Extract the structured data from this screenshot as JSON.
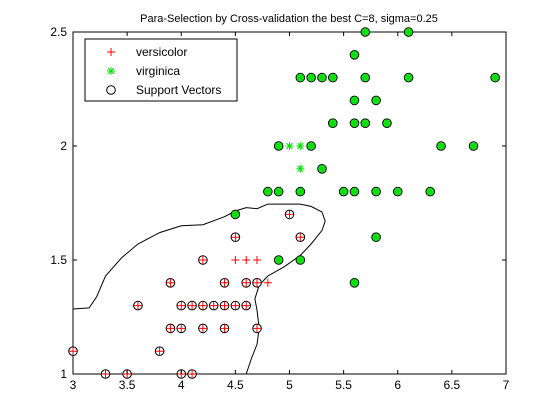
{
  "chart_data": {
    "type": "scatter",
    "title": "Para-Selection by Cross-validation the best C=8, sigma=0.25",
    "xlabel": "",
    "ylabel": "",
    "xlim": [
      3,
      7
    ],
    "ylim": [
      1,
      2.5
    ],
    "xticks": [
      "3",
      "3.5",
      "4",
      "4.5",
      "5",
      "5.5",
      "6",
      "6.5",
      "7"
    ],
    "yticks": [
      "1",
      "1.5",
      "2",
      "2.5"
    ],
    "legend_position": "top-left",
    "colors": {
      "versicolor": "#ff0000",
      "virginica": "#00e000",
      "support_fill": "#33dd33",
      "support_edge": "#000000",
      "boundary": "#000000"
    },
    "legend": [
      {
        "label": "versicolor",
        "marker": "plus"
      },
      {
        "label": "virginica",
        "marker": "asterisk"
      },
      {
        "label": "Support Vectors",
        "marker": "circle"
      }
    ],
    "series": [
      {
        "name": "versicolor",
        "marker": "plus",
        "points": [
          [
            3.0,
            1.1
          ],
          [
            3.3,
            1.0
          ],
          [
            3.5,
            1.0
          ],
          [
            3.6,
            1.3
          ],
          [
            3.8,
            1.1
          ],
          [
            3.9,
            1.2
          ],
          [
            3.9,
            1.4
          ],
          [
            4.0,
            1.0
          ],
          [
            4.0,
            1.2
          ],
          [
            4.0,
            1.3
          ],
          [
            4.1,
            1.0
          ],
          [
            4.1,
            1.3
          ],
          [
            4.2,
            1.2
          ],
          [
            4.2,
            1.3
          ],
          [
            4.2,
            1.5
          ],
          [
            4.3,
            1.3
          ],
          [
            4.4,
            1.2
          ],
          [
            4.4,
            1.3
          ],
          [
            4.4,
            1.4
          ],
          [
            4.5,
            1.3
          ],
          [
            4.5,
            1.5
          ],
          [
            4.5,
            1.6
          ],
          [
            4.6,
            1.3
          ],
          [
            4.6,
            1.4
          ],
          [
            4.6,
            1.5
          ],
          [
            4.7,
            1.2
          ],
          [
            4.7,
            1.4
          ],
          [
            4.7,
            1.5
          ],
          [
            4.8,
            1.4
          ],
          [
            4.9,
            1.5
          ],
          [
            5.0,
            1.7
          ],
          [
            5.1,
            1.6
          ]
        ]
      },
      {
        "name": "virginica",
        "marker": "asterisk",
        "points": [
          [
            4.5,
            1.7
          ],
          [
            4.8,
            1.8
          ],
          [
            4.9,
            1.8
          ],
          [
            4.9,
            2.0
          ],
          [
            5.0,
            2.0
          ],
          [
            5.1,
            2.0
          ],
          [
            5.1,
            1.9
          ],
          [
            5.1,
            1.8
          ],
          [
            5.1,
            2.3
          ],
          [
            5.2,
            2.0
          ],
          [
            5.2,
            2.3
          ],
          [
            5.3,
            1.9
          ],
          [
            5.3,
            2.3
          ],
          [
            5.4,
            2.1
          ],
          [
            5.4,
            2.3
          ],
          [
            5.5,
            1.8
          ],
          [
            5.6,
            1.8
          ],
          [
            5.6,
            2.1
          ],
          [
            5.6,
            2.2
          ],
          [
            5.6,
            2.4
          ],
          [
            5.7,
            2.1
          ],
          [
            5.7,
            2.3
          ],
          [
            5.7,
            2.5
          ],
          [
            5.8,
            1.8
          ],
          [
            5.8,
            2.2
          ],
          [
            5.8,
            1.6
          ],
          [
            5.9,
            2.1
          ],
          [
            6.0,
            1.8
          ],
          [
            6.1,
            2.3
          ],
          [
            6.1,
            2.5
          ],
          [
            6.3,
            1.8
          ],
          [
            6.4,
            2.0
          ],
          [
            6.7,
            2.0
          ],
          [
            6.9,
            2.3
          ],
          [
            5.6,
            1.4
          ],
          [
            4.9,
            1.5
          ],
          [
            5.1,
            1.5
          ]
        ]
      },
      {
        "name": "Support Vectors",
        "marker": "circle",
        "points": [
          [
            3.0,
            1.1
          ],
          [
            3.3,
            1.0
          ],
          [
            3.5,
            1.0
          ],
          [
            3.6,
            1.3
          ],
          [
            3.8,
            1.1
          ],
          [
            3.9,
            1.2
          ],
          [
            3.9,
            1.4
          ],
          [
            4.0,
            1.0
          ],
          [
            4.0,
            1.2
          ],
          [
            4.0,
            1.3
          ],
          [
            4.1,
            1.0
          ],
          [
            4.1,
            1.3
          ],
          [
            4.2,
            1.2
          ],
          [
            4.2,
            1.3
          ],
          [
            4.2,
            1.5
          ],
          [
            4.3,
            1.3
          ],
          [
            4.4,
            1.2
          ],
          [
            4.4,
            1.3
          ],
          [
            4.4,
            1.4
          ],
          [
            4.5,
            1.3
          ],
          [
            4.5,
            1.6
          ],
          [
            4.6,
            1.3
          ],
          [
            4.6,
            1.4
          ],
          [
            4.7,
            1.2
          ],
          [
            4.7,
            1.4
          ],
          [
            4.9,
            1.5
          ],
          [
            5.0,
            1.7
          ],
          [
            5.1,
            1.6
          ],
          [
            4.5,
            1.7
          ],
          [
            4.8,
            1.8
          ],
          [
            4.9,
            1.8
          ],
          [
            4.9,
            2.0
          ],
          [
            5.1,
            2.3
          ],
          [
            5.1,
            1.8
          ],
          [
            5.1,
            1.5
          ],
          [
            5.2,
            2.0
          ],
          [
            5.2,
            2.3
          ],
          [
            5.3,
            1.9
          ],
          [
            5.3,
            2.3
          ],
          [
            5.4,
            2.1
          ],
          [
            5.4,
            2.3
          ],
          [
            5.5,
            1.8
          ],
          [
            5.6,
            1.8
          ],
          [
            5.6,
            2.1
          ],
          [
            5.6,
            2.2
          ],
          [
            5.6,
            2.4
          ],
          [
            5.6,
            1.4
          ],
          [
            5.7,
            2.1
          ],
          [
            5.7,
            2.3
          ],
          [
            5.7,
            2.5
          ],
          [
            5.8,
            1.8
          ],
          [
            5.8,
            2.2
          ],
          [
            5.8,
            1.6
          ],
          [
            5.9,
            2.1
          ],
          [
            6.0,
            1.8
          ],
          [
            6.1,
            2.3
          ],
          [
            6.1,
            2.5
          ],
          [
            6.3,
            1.8
          ],
          [
            6.4,
            2.0
          ],
          [
            6.7,
            2.0
          ],
          [
            6.9,
            2.3
          ]
        ]
      }
    ],
    "decision_boundary": [
      [
        3.0,
        1.285
      ],
      [
        3.15,
        1.29
      ],
      [
        3.22,
        1.34
      ],
      [
        3.3,
        1.43
      ],
      [
        3.45,
        1.51
      ],
      [
        3.6,
        1.57
      ],
      [
        3.8,
        1.62
      ],
      [
        4.0,
        1.65
      ],
      [
        4.2,
        1.655
      ],
      [
        4.4,
        1.69
      ],
      [
        4.5,
        1.715
      ],
      [
        4.6,
        1.73
      ],
      [
        4.7,
        1.725
      ],
      [
        4.8,
        1.745
      ],
      [
        4.95,
        1.745
      ],
      [
        5.1,
        1.745
      ],
      [
        5.2,
        1.735
      ],
      [
        5.3,
        1.71
      ],
      [
        5.33,
        1.67
      ],
      [
        5.3,
        1.63
      ],
      [
        5.2,
        1.57
      ],
      [
        5.1,
        1.52
      ],
      [
        4.95,
        1.47
      ],
      [
        4.8,
        1.43
      ],
      [
        4.72,
        1.39
      ],
      [
        4.68,
        1.33
      ],
      [
        4.7,
        1.28
      ],
      [
        4.72,
        1.2
      ],
      [
        4.7,
        1.13
      ],
      [
        4.65,
        1.07
      ],
      [
        4.6,
        1.0
      ]
    ]
  }
}
